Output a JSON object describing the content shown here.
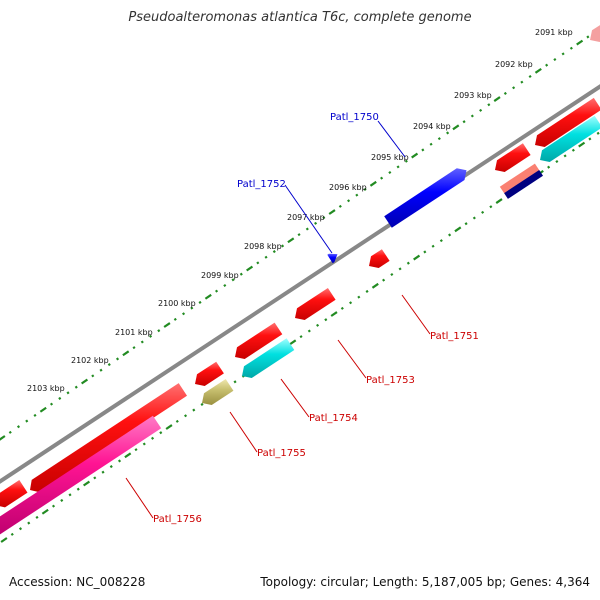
{
  "title": "Pseudoalteromonas atlantica T6c, complete genome",
  "footer": {
    "accession": "Accession: NC_008228",
    "summary": "Topology: circular; Length: 5,187,005 bp; Genes: 4,364"
  },
  "colors": {
    "backbone": "#808080",
    "forward_cds": "#ff0000",
    "reverse_cds": "#ff0000",
    "pink_cds": "#ff1493",
    "cyan_cds": "#00d8d8",
    "olive_cds": "#c8c070",
    "blue_cds": "#0000ff",
    "navy_cds": "#000080",
    "salmon_cds": "#fa8072",
    "tick_green": "#228b22",
    "label_blue": "#0000cc",
    "label_red": "#cc0000"
  },
  "scale_labels": [
    "2091 kbp",
    "2092 kbp",
    "2093 kbp",
    "2094 kbp",
    "2095 kbp",
    "2096 kbp",
    "2097 kbp",
    "2098 kbp",
    "2099 kbp",
    "2100 kbp",
    "2101 kbp",
    "2102 kbp",
    "2103 kbp"
  ],
  "gene_labels": {
    "patl_1750": "Patl_1750",
    "patl_1751": "Patl_1751",
    "patl_1752": "Patl_1752",
    "patl_1753": "Patl_1753",
    "patl_1754": "Patl_1754",
    "patl_1755": "Patl_1755",
    "patl_1756": "Patl_1756"
  }
}
